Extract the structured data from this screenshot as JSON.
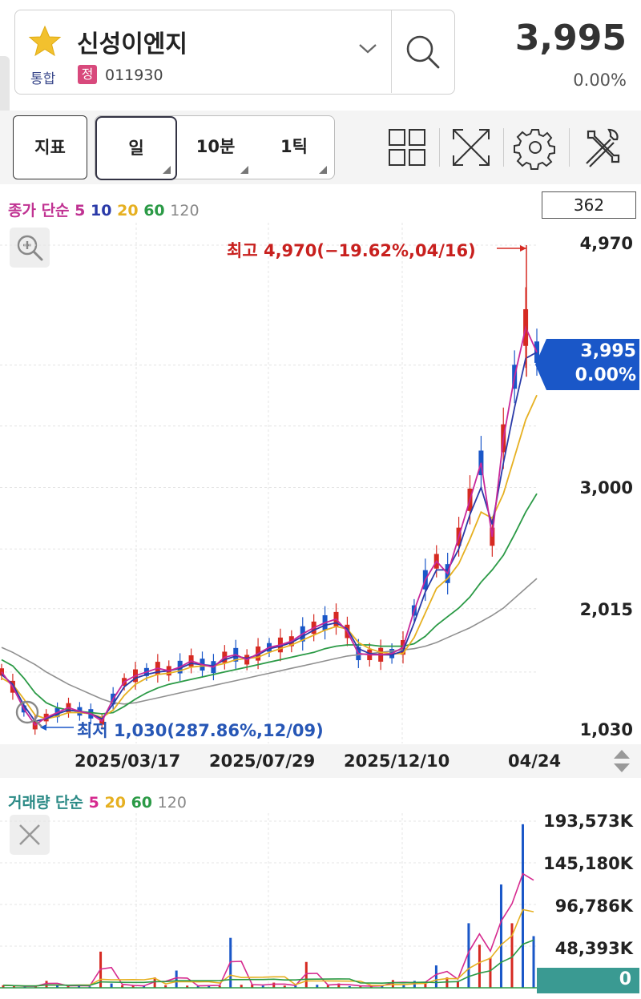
{
  "header": {
    "stock_name": "신성이엔지",
    "market": "통합",
    "badge": "정",
    "code": "011930",
    "price": "3,995",
    "change": "0.00%"
  },
  "toolbar": {
    "indicator_label": "지표",
    "periods": [
      "일",
      "10분",
      "1틱"
    ]
  },
  "price_chart": {
    "legend_prefix": "종가 단순",
    "ma": [
      {
        "label": "5",
        "color": "#7b35c4"
      },
      {
        "label": "10",
        "color": "#2a3aa8"
      },
      {
        "label": "20",
        "color": "#e6b021"
      },
      {
        "label": "60",
        "color": "#2b9a46"
      },
      {
        "label": "120",
        "color": "#888888"
      }
    ],
    "count": "362",
    "high_label": "최고 4,970(−19.62%,04/16)",
    "low_label": "최저 1,030(287.86%,12/09)",
    "current_price": "3,995",
    "current_change": "0.00%",
    "accent_color": "#1a57c8",
    "up_color": "#d62a22",
    "down_color": "#1a57c8"
  },
  "volume_chart": {
    "legend_prefix": "거래량 단순",
    "ma": [
      {
        "label": "5",
        "color": "#d62a8f"
      },
      {
        "label": "20",
        "color": "#e6b021"
      },
      {
        "label": "60",
        "color": "#2b9a46"
      },
      {
        "label": "120",
        "color": "#888888"
      }
    ],
    "current_volume": "0"
  },
  "chart_data": [
    {
      "type": "line",
      "title": "",
      "xlabel": "",
      "ylabel": "",
      "y_tick_labels": [
        "4,970",
        "3,000",
        "2,015",
        "1,030"
      ],
      "ylim": [
        1030,
        4970
      ],
      "x_tick_labels": [
        "2025/03/17",
        "2025/07/29",
        "2025/12/10",
        "04/24"
      ],
      "series": [
        {
          "name": "5",
          "values": [
            1500,
            1380,
            1200,
            1070,
            1130,
            1170,
            1210,
            1180,
            1160,
            1100,
            1280,
            1420,
            1470,
            1500,
            1530,
            1510,
            1540,
            1590,
            1560,
            1540,
            1620,
            1640,
            1600,
            1650,
            1700,
            1720,
            1750,
            1810,
            1860,
            1900,
            1930,
            1830,
            1650,
            1640,
            1640,
            1650,
            1700,
            2000,
            2250,
            2400,
            2300,
            2600,
            2900,
            3200,
            2600,
            3400,
            3900,
            4300,
            4100
          ]
        },
        {
          "name": "10",
          "values": [
            1480,
            1400,
            1230,
            1100,
            1120,
            1160,
            1190,
            1180,
            1160,
            1120,
            1240,
            1380,
            1450,
            1480,
            1500,
            1510,
            1530,
            1570,
            1560,
            1550,
            1600,
            1630,
            1610,
            1640,
            1690,
            1710,
            1740,
            1790,
            1840,
            1880,
            1900,
            1850,
            1690,
            1650,
            1640,
            1640,
            1670,
            1900,
            2150,
            2330,
            2330,
            2500,
            2780,
            3000,
            2700,
            3200,
            3650,
            4050,
            4100
          ]
        },
        {
          "name": "20",
          "values": [
            1450,
            1400,
            1280,
            1150,
            1120,
            1140,
            1170,
            1170,
            1160,
            1130,
            1190,
            1310,
            1400,
            1450,
            1480,
            1490,
            1510,
            1540,
            1550,
            1550,
            1570,
            1600,
            1610,
            1620,
            1660,
            1690,
            1720,
            1760,
            1800,
            1840,
            1870,
            1850,
            1740,
            1690,
            1660,
            1650,
            1650,
            1780,
            1980,
            2180,
            2260,
            2380,
            2580,
            2800,
            2750,
            2950,
            3250,
            3550,
            3750
          ]
        },
        {
          "name": "60",
          "values": [
            1600,
            1550,
            1450,
            1330,
            1250,
            1210,
            1190,
            1180,
            1170,
            1160,
            1170,
            1220,
            1280,
            1330,
            1370,
            1400,
            1420,
            1440,
            1460,
            1480,
            1500,
            1520,
            1540,
            1560,
            1580,
            1600,
            1620,
            1640,
            1660,
            1690,
            1710,
            1720,
            1720,
            1720,
            1710,
            1710,
            1710,
            1730,
            1790,
            1880,
            1950,
            2020,
            2110,
            2230,
            2330,
            2450,
            2620,
            2800,
            2950
          ]
        },
        {
          "name": "120",
          "values": [
            1700,
            1660,
            1610,
            1560,
            1500,
            1450,
            1400,
            1360,
            1320,
            1280,
            1250,
            1240,
            1250,
            1270,
            1290,
            1310,
            1330,
            1350,
            1370,
            1390,
            1410,
            1430,
            1450,
            1470,
            1490,
            1510,
            1530,
            1550,
            1570,
            1590,
            1610,
            1630,
            1640,
            1650,
            1660,
            1670,
            1680,
            1690,
            1710,
            1740,
            1780,
            1820,
            1860,
            1910,
            1960,
            2020,
            2100,
            2180,
            2260
          ]
        }
      ],
      "annotations": [
        {
          "label": "최고 4,970(−19.62%,04/16)",
          "value": 4970
        },
        {
          "label": "최저 1,030(287.86%,12/09)",
          "value": 1030
        }
      ],
      "current": 3995,
      "grid": true
    },
    {
      "type": "bar",
      "title": "",
      "y_tick_labels": [
        "193,573K",
        "145,180K",
        "96,786K",
        "48,393K",
        "0"
      ],
      "ylim": [
        0,
        193573
      ],
      "units": "K",
      "values": [
        3000,
        2000,
        1500,
        2000,
        8000,
        2500,
        2000,
        3000,
        1500,
        42000,
        5000,
        3000,
        2500,
        2000,
        12000,
        3000,
        20000,
        2500,
        2000,
        3000,
        2500,
        58000,
        3500,
        4000,
        2500,
        6000,
        2500,
        3000,
        30000,
        3500,
        3000,
        5000,
        2000,
        2500,
        1500,
        3000,
        9000,
        4000,
        8000,
        5000,
        26000,
        12000,
        8000,
        75000,
        50000,
        35000,
        120000,
        75000,
        190000,
        60000
      ],
      "grid": true
    }
  ]
}
